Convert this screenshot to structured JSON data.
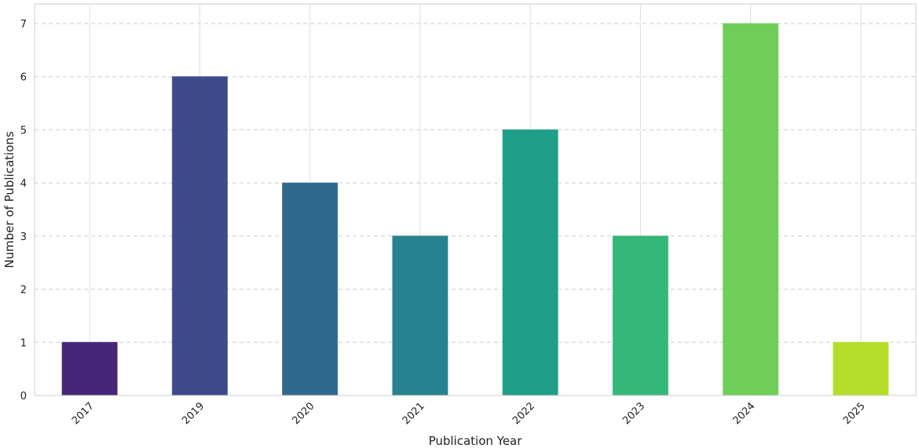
{
  "chart_data": {
    "type": "bar",
    "categories": [
      "2017",
      "2019",
      "2020",
      "2021",
      "2022",
      "2023",
      "2024",
      "2025"
    ],
    "values": [
      1,
      6,
      4,
      3,
      5,
      3,
      7,
      1
    ],
    "colors": [
      "#482677",
      "#3e4a89",
      "#31688e",
      "#26828e",
      "#1f9e89",
      "#35b779",
      "#6ece58",
      "#b5de2b"
    ],
    "title": "",
    "xlabel": "Publication Year",
    "ylabel": "Number of Publications",
    "ylim": [
      0,
      7.0
    ],
    "yticks": [
      "0",
      "1",
      "2",
      "3",
      "4",
      "5",
      "6",
      "7"
    ],
    "grid": true,
    "legend": false
  }
}
